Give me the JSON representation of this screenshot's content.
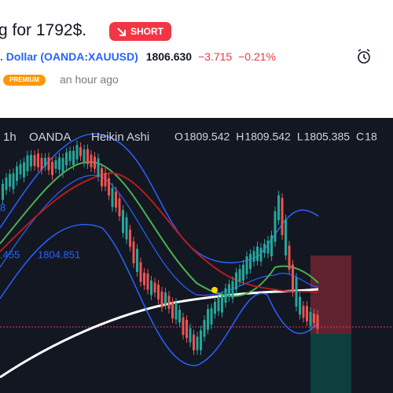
{
  "header": {
    "title": "g for 1792$.",
    "badge": "SHORT"
  },
  "symbol": {
    "name": ". Dollar",
    "ticker": "(OANDA:XAUUSD)",
    "price": "1806.630",
    "change": "−3.715",
    "change_pct": "−0.21%"
  },
  "author": {
    "badge": "PREMIUM",
    "time": "an hour ago"
  },
  "chart": {
    "interval": "1h",
    "exchange": "OANDA",
    "style": "Heikin Ashi",
    "ohlc": [
      {
        "label": "O",
        "value": "1809.542"
      },
      {
        "label": "H",
        "value": "1809.542"
      },
      {
        "label": "L",
        "value": "1805.385"
      },
      {
        "label": "C",
        "value": "18"
      }
    ],
    "indicator_a": "8",
    "indicator_b": [
      ".455",
      "1804.851"
    ]
  }
}
